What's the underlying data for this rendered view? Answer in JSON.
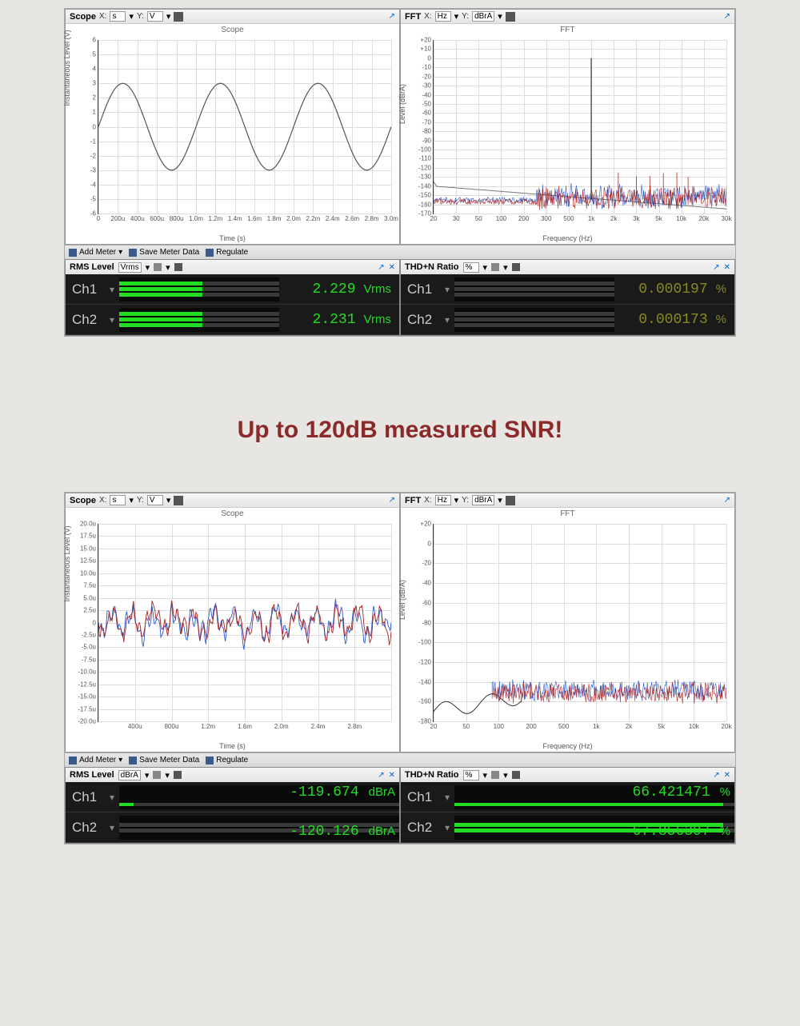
{
  "page": {
    "background_color": "#e8e6e2",
    "headline": "Up to 120dB measured SNR!",
    "headline_color": "#8a2a2a",
    "headline_fontsize": 30
  },
  "screenshot1": {
    "scope": {
      "title": "Scope",
      "subtitle": "Scope",
      "x_unit": "s",
      "y_unit": "V",
      "ylabel": "Instantaneous Level (V)",
      "xlabel": "Time (s)",
      "ylim": [
        -6,
        6
      ],
      "ytick_step": 1,
      "xticks": [
        "0",
        "200u",
        "400u",
        "600u",
        "800u",
        "1.0m",
        "1.2m",
        "1.4m",
        "1.6m",
        "1.8m",
        "2.0m",
        "2.2m",
        "2.4m",
        "2.6m",
        "2.8m",
        "3.0m"
      ],
      "wave": {
        "type": "sine",
        "amplitude": 3,
        "cycles": 3,
        "color": "#555",
        "linewidth": 1.5
      },
      "grid_color": "#ddd",
      "background_color": "#ffffff"
    },
    "fft": {
      "title": "FFT",
      "subtitle": "FFT",
      "x_unit": "Hz",
      "y_unit": "dBrA",
      "ylabel": "Level (dBrA)",
      "xlabel": "Frequency (Hz)",
      "ylim": [
        -170,
        20
      ],
      "ytick_step": 10,
      "xticks_log": [
        "20",
        "30",
        "50",
        "100",
        "200",
        "300",
        "500",
        "1k",
        "2k",
        "3k",
        "5k",
        "10k",
        "20k",
        "30k"
      ],
      "peak_hz": "1k",
      "peak_db": 0,
      "noise_floor_db": -155,
      "colors": {
        "ch1": "#2a5acc",
        "ch2": "#aa2222",
        "noise_env": "#777"
      },
      "grid_color": "#eee",
      "background_color": "#ffffff"
    },
    "toolbar": {
      "add_meter": "Add Meter",
      "save_meter": "Save Meter Data",
      "regulate": "Regulate"
    },
    "rms_level": {
      "title": "RMS Level",
      "unit": "Vrms",
      "ch1": {
        "label": "Ch1",
        "value": "2.229",
        "unit": "Vrms",
        "bar_fill": 0.52,
        "color": "#2d2"
      },
      "ch2": {
        "label": "Ch2",
        "value": "2.231",
        "unit": "Vrms",
        "bar_fill": 0.52,
        "color": "#2d2"
      }
    },
    "thd_n": {
      "title": "THD+N Ratio",
      "unit": "%",
      "ch1": {
        "label": "Ch1",
        "value": "0.000197",
        "unit": "%",
        "bar_fill": 0.0,
        "color": "#8a8a1f"
      },
      "ch2": {
        "label": "Ch2",
        "value": "0.000173",
        "unit": "%",
        "bar_fill": 0.0,
        "color": "#8a8a1f"
      }
    }
  },
  "screenshot2": {
    "scope": {
      "title": "Scope",
      "subtitle": "Scope",
      "x_unit": "s",
      "y_unit": "V",
      "ylabel": "Instantaneous Level (V)",
      "xlabel": "Time (s)",
      "yticks_u": [
        "20.0u",
        "17.5u",
        "15.0u",
        "12.5u",
        "10.0u",
        "7.5u",
        "5.0u",
        "2.5u",
        "0",
        "-2.5u",
        "-5.0u",
        "-7.5u",
        "-10.0u",
        "-12.5u",
        "-15.0u",
        "-17.5u",
        "-20.0u"
      ],
      "xticks": [
        "400u",
        "800u",
        "1.2m",
        "1.6m",
        "2.0m",
        "2.4m",
        "2.8m"
      ],
      "noise": {
        "type": "random",
        "amplitude_u": 6,
        "colors": [
          "#2a5acc",
          "#aa2222"
        ]
      },
      "grid_color": "#ddd",
      "background_color": "#ffffff"
    },
    "fft": {
      "title": "FFT",
      "subtitle": "FFT",
      "x_unit": "Hz",
      "y_unit": "dBrA",
      "ylabel": "Level (dBrA)",
      "xlabel": "Frequency (Hz)",
      "ylim": [
        -180,
        20
      ],
      "ytick_step": 20,
      "xticks_log": [
        "20",
        "50",
        "100",
        "200",
        "500",
        "1k",
        "2k",
        "5k",
        "10k",
        "20k"
      ],
      "noise_floor_db": -155,
      "colors": {
        "ch1": "#2a5acc",
        "ch2": "#aa2222",
        "noise_env": "#333"
      },
      "grid_color": "#eee",
      "background_color": "#ffffff"
    },
    "toolbar": {
      "add_meter": "Add Meter",
      "save_meter": "Save Meter Data",
      "regulate": "Regulate"
    },
    "rms_level": {
      "title": "RMS Level",
      "unit": "dBrA",
      "ch1": {
        "label": "Ch1",
        "value": "-119.674",
        "unit": "dBrA",
        "bar_fill": 0.82,
        "color": "#2d2"
      },
      "ch2": {
        "label": "Ch2",
        "value": "-120.126",
        "unit": "dBrA",
        "bar_fill": 0.82,
        "color": "#2d2"
      }
    },
    "thd_n": {
      "title": "THD+N Ratio",
      "unit": "%",
      "ch1": {
        "label": "Ch1",
        "value": "66.421471",
        "unit": "%",
        "bar_fill": 0.95,
        "color": "#2d2"
      },
      "ch2": {
        "label": "Ch2",
        "value": "67.856397",
        "unit": "%",
        "bar_fill": 0.95,
        "color": "#2d2"
      }
    }
  }
}
